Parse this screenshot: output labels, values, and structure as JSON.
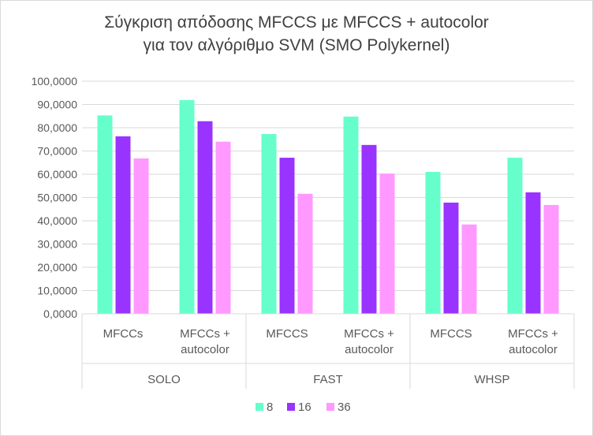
{
  "chart_data": {
    "type": "bar",
    "title_line1": "Σύγκριση απόδοσης MFCCS με MFCCS + autocolor",
    "title_line2": "για τον αλγόριθμο SVM (SMO Polykernel)",
    "ylim": [
      0,
      100
    ],
    "y_step": 10,
    "y_tick_labels": [
      "0,0000",
      "10,0000",
      "20,0000",
      "30,0000",
      "40,0000",
      "50,0000",
      "60,0000",
      "70,0000",
      "80,0000",
      "90,0000",
      "100,0000"
    ],
    "groups": [
      {
        "label": "SOLO",
        "categories": [
          [
            "MFCCs"
          ],
          [
            "MFCCs +",
            "autocolor"
          ]
        ]
      },
      {
        "label": "FAST",
        "categories": [
          [
            "MFCCS"
          ],
          [
            "MFCCs +",
            "autocolor"
          ]
        ]
      },
      {
        "label": "WHSP",
        "categories": [
          [
            "MFCCS"
          ],
          [
            "MFCCs +",
            "autocolor"
          ]
        ]
      }
    ],
    "series": [
      {
        "name": "8",
        "color": "#66ffcc",
        "values": [
          85.3,
          91.9,
          77.3,
          84.8,
          61.0,
          67.1
        ]
      },
      {
        "name": "16",
        "color": "#9933ff",
        "values": [
          76.3,
          82.8,
          67.1,
          72.6,
          47.8,
          52.2
        ]
      },
      {
        "name": "36",
        "color": "#ff99ff",
        "values": [
          66.8,
          74.0,
          51.6,
          60.3,
          38.4,
          46.8
        ]
      }
    ],
    "grid": true,
    "legend_position": "bottom"
  }
}
